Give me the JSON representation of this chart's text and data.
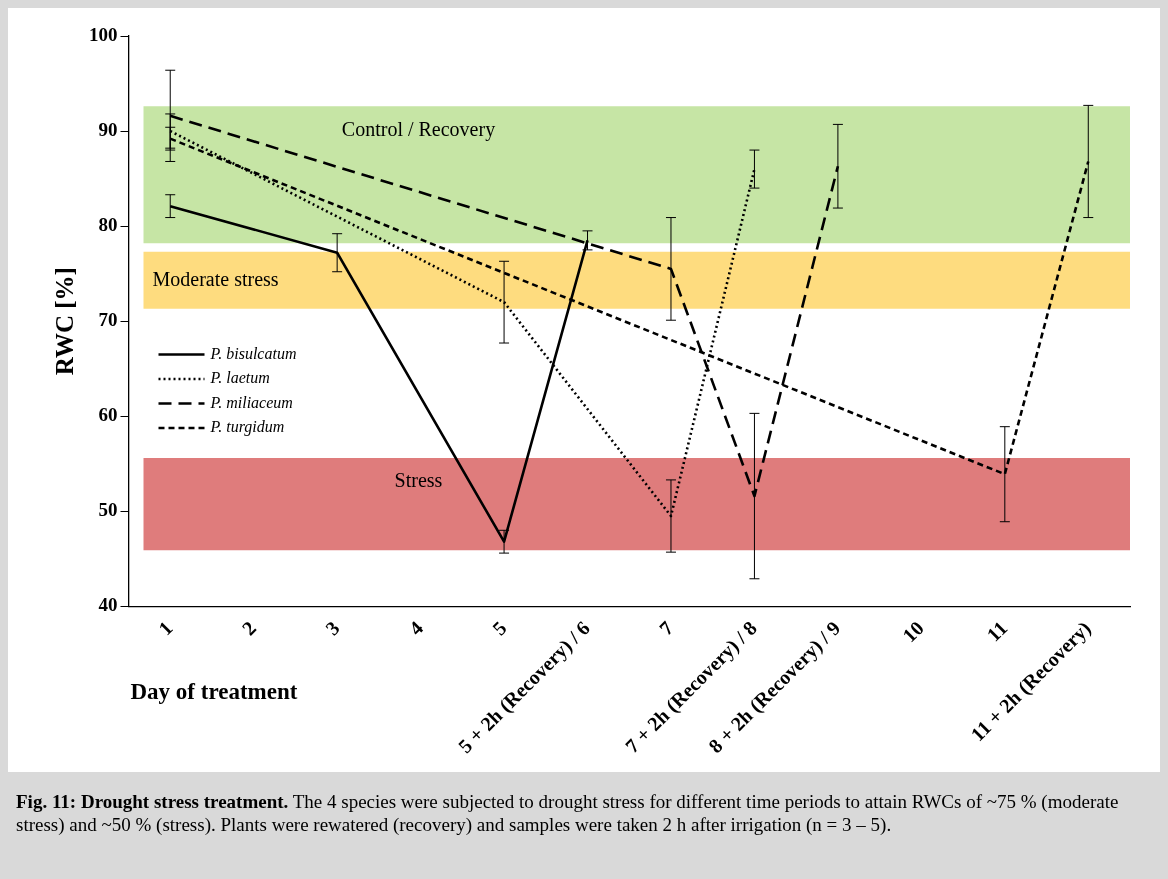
{
  "chart_data": {
    "type": "line",
    "ylabel": "RWC [%]",
    "xlabel": "Day of treatment",
    "categories": [
      "1",
      "2",
      "3",
      "4",
      "5",
      "5 + 2h (Recovery) / 6",
      "7",
      "7 + 2h (Recovery) / 8",
      "8 + 2h (Recovery) / 9",
      "10",
      "11",
      "11 + 2h (Recovery)"
    ],
    "series": [
      {
        "name": "P. bisulcatum",
        "color": "#000000",
        "line_style": "solid",
        "values": [
          82.1,
          null,
          77.2,
          null,
          46.8,
          78.5,
          null,
          null,
          null,
          null,
          null,
          null
        ],
        "errors": [
          1.2,
          null,
          2,
          null,
          1.2,
          1,
          null,
          null,
          null,
          null,
          null,
          null
        ]
      },
      {
        "name": "P. laetum",
        "color": "#000000",
        "line_style": "dotted",
        "values": [
          90,
          null,
          null,
          null,
          72,
          null,
          49.5,
          86,
          null,
          null,
          null,
          null
        ],
        "errors": [
          1.8,
          null,
          null,
          null,
          4.3,
          null,
          3.8,
          2,
          null,
          null,
          null,
          null
        ]
      },
      {
        "name": "P. miliaceum",
        "color": "#000000",
        "line_style": "dashed",
        "values": [
          91.6,
          null,
          null,
          null,
          null,
          null,
          75.5,
          51.6,
          86.3,
          null,
          null,
          null
        ],
        "errors": [
          4.8,
          null,
          null,
          null,
          null,
          null,
          5.4,
          8.7,
          4.4,
          null,
          null,
          null
        ]
      },
      {
        "name": "P. turgidum",
        "color": "#000000",
        "line_style": "dashed",
        "values": [
          89.2,
          null,
          null,
          null,
          null,
          null,
          null,
          null,
          null,
          null,
          53.9,
          86.8
        ],
        "errors": [
          1.2,
          null,
          null,
          null,
          null,
          null,
          null,
          null,
          null,
          null,
          5,
          5.9
        ]
      }
    ],
    "ylim": [
      40,
      100
    ],
    "yticks": [
      40,
      50,
      60,
      70,
      80,
      90,
      100
    ],
    "bands": [
      {
        "axis": "y",
        "from": 78.2,
        "to": 92.6,
        "label": "Control / Recovery",
        "color": "#c6e5a5"
      },
      {
        "axis": "y",
        "from": 71.3,
        "to": 77.3,
        "label": "Moderate stress",
        "color": "#fedc7f"
      },
      {
        "axis": "y",
        "from": 45.9,
        "to": 55.6,
        "label": "Stress",
        "color": "#df7c7c"
      }
    ],
    "legend": "left",
    "marker": "none",
    "grid": false,
    "annotations": [
      "Fig. 11: Drought stress treatment.",
      "The 4 species were subjected to drought stress for different time periods to attain RWCs of ~75 % (moderate stress) and ~50 % (stress). Plants were rewatered (recovery) and samples were taken 2 h after irrigation (n = 3 – 5)."
    ]
  }
}
